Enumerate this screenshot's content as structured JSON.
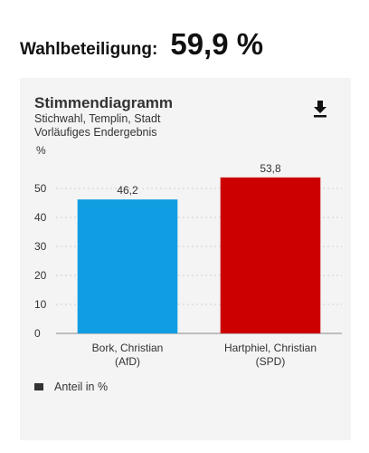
{
  "turnout": {
    "label": "Wahlbeteiligung:",
    "value": "59,9 %"
  },
  "chart": {
    "title": "Stimmendiagramm",
    "subtitle_line1": "Stichwahl, Templin, Stadt",
    "subtitle_line2": "Vorläufiges Endergebnis"
  },
  "download_icon": "download-icon",
  "chart_data": {
    "type": "bar",
    "ylabel": "%",
    "ylim": [
      0,
      55
    ],
    "yticks": [
      0,
      10,
      20,
      30,
      40,
      50
    ],
    "grid": true,
    "categories": [
      [
        "Bork, Christian",
        "(AfD)"
      ],
      [
        "Hartphiel, Christian",
        "(SPD)"
      ]
    ],
    "series": [
      {
        "name": "Anteil in %",
        "values": [
          46.2,
          53.8
        ],
        "value_labels": [
          "46,2",
          "53,8"
        ],
        "colors": [
          "#0f9ee1",
          "#cc0000"
        ]
      }
    ],
    "legend_position": "bottom-left"
  },
  "legend": {
    "label": "Anteil in %",
    "color": "#333333"
  }
}
